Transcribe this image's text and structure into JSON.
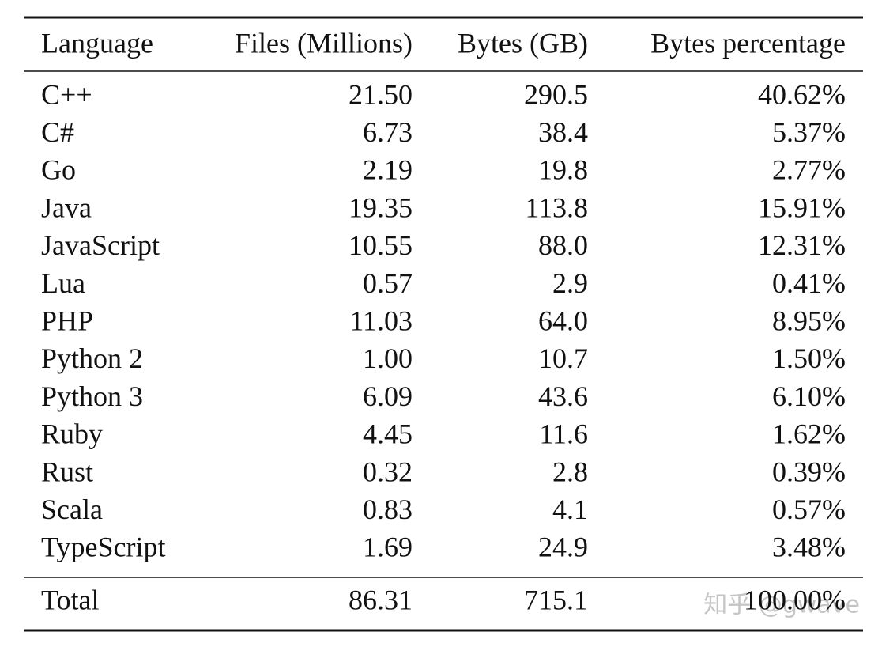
{
  "table": {
    "header": [
      "Language",
      "Files (Millions)",
      "Bytes (GB)",
      "Bytes percentage"
    ],
    "rows": [
      [
        "C++",
        "21.50",
        "290.5",
        "40.62%"
      ],
      [
        "C#",
        "6.73",
        "38.4",
        "5.37%"
      ],
      [
        "Go",
        "2.19",
        "19.8",
        "2.77%"
      ],
      [
        "Java",
        "19.35",
        "113.8",
        "15.91%"
      ],
      [
        "JavaScript",
        "10.55",
        "88.0",
        "12.31%"
      ],
      [
        "Lua",
        "0.57",
        "2.9",
        "0.41%"
      ],
      [
        "PHP",
        "11.03",
        "64.0",
        "8.95%"
      ],
      [
        "Python 2",
        "1.00",
        "10.7",
        "1.50%"
      ],
      [
        "Python 3",
        "6.09",
        "43.6",
        "6.10%"
      ],
      [
        "Ruby",
        "4.45",
        "11.6",
        "1.62%"
      ],
      [
        "Rust",
        "0.32",
        "2.8",
        "0.39%"
      ],
      [
        "Scala",
        "0.83",
        "4.1",
        "0.57%"
      ],
      [
        "TypeScript",
        "1.69",
        "24.9",
        "3.48%"
      ]
    ],
    "total": [
      "Total",
      "86.31",
      "715.1",
      "100.00%"
    ]
  },
  "watermark": "知乎 @gwave"
}
